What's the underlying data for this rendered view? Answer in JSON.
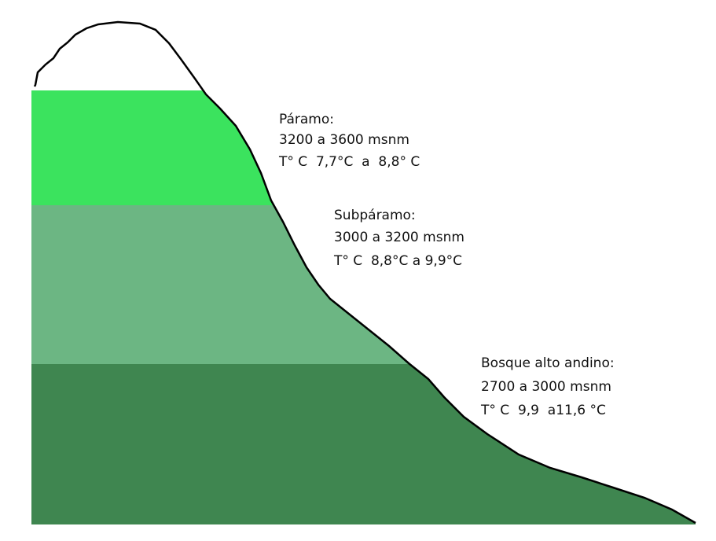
{
  "zones": [
    {
      "name": "Páramo:",
      "altitude": "3200 a 3600 msnm",
      "temperature": "T° C  7,7°C  a  8,8° C"
    },
    {
      "name": "Subpáramo:",
      "altitude": "3000 a 3200 msnm",
      "temperature": "T° C  8,8°C a 9,9°C"
    },
    {
      "name": "Bosque alto andino:",
      "altitude": "2700 a 3000 msnm",
      "temperature": "T° C  9,9  a11,6 °C"
    }
  ]
}
